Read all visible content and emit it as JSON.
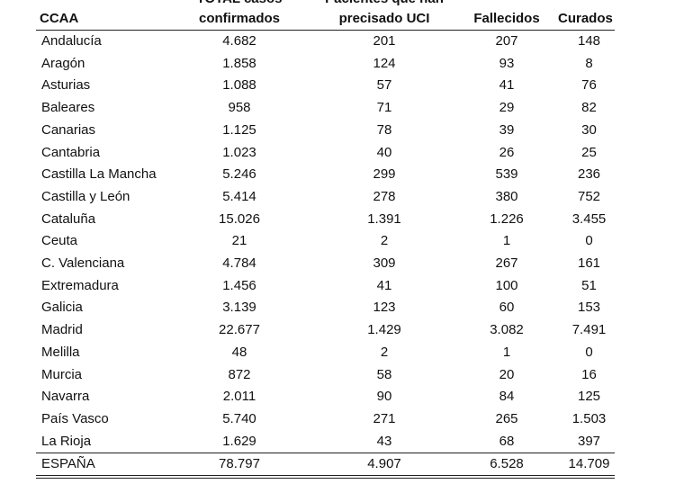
{
  "table": {
    "headers": {
      "region": "CCAA",
      "confirmed_line1": "TOTAL casos",
      "confirmed_line2": "confirmados",
      "icu_line1": "Pacientes que han",
      "icu_line2": "precisado UCI",
      "deaths": "Fallecidos",
      "recovered": "Curados"
    },
    "rows": [
      [
        "Andalucía",
        "4.682",
        "201",
        "207",
        "148"
      ],
      [
        "Aragón",
        "1.858",
        "124",
        "93",
        "8"
      ],
      [
        "Asturias",
        "1.088",
        "57",
        "41",
        "76"
      ],
      [
        "Baleares",
        "958",
        "71",
        "29",
        "82"
      ],
      [
        "Canarias",
        "1.125",
        "78",
        "39",
        "30"
      ],
      [
        "Cantabria",
        "1.023",
        "40",
        "26",
        "25"
      ],
      [
        "Castilla La Mancha",
        "5.246",
        "299",
        "539",
        "236"
      ],
      [
        "Castilla y León",
        "5.414",
        "278",
        "380",
        "752"
      ],
      [
        "Cataluña",
        "15.026",
        "1.391",
        "1.226",
        "3.455"
      ],
      [
        "Ceuta",
        "21",
        "2",
        "1",
        "0"
      ],
      [
        "C. Valenciana",
        "4.784",
        "309",
        "267",
        "161"
      ],
      [
        "Extremadura",
        "1.456",
        "41",
        "100",
        "51"
      ],
      [
        "Galicia",
        "3.139",
        "123",
        "60",
        "153"
      ],
      [
        "Madrid",
        "22.677",
        "1.429",
        "3.082",
        "7.491"
      ],
      [
        "Melilla",
        "48",
        "2",
        "1",
        "0"
      ],
      [
        "Murcia",
        "872",
        "58",
        "20",
        "16"
      ],
      [
        "Navarra",
        "2.011",
        "90",
        "84",
        "125"
      ],
      [
        "País Vasco",
        "5.740",
        "271",
        "265",
        "1.503"
      ],
      [
        "La Rioja",
        "1.629",
        "43",
        "68",
        "397"
      ]
    ],
    "total": [
      "ESPAÑA",
      "78.797",
      "4.907",
      "6.528",
      "14.709"
    ]
  }
}
